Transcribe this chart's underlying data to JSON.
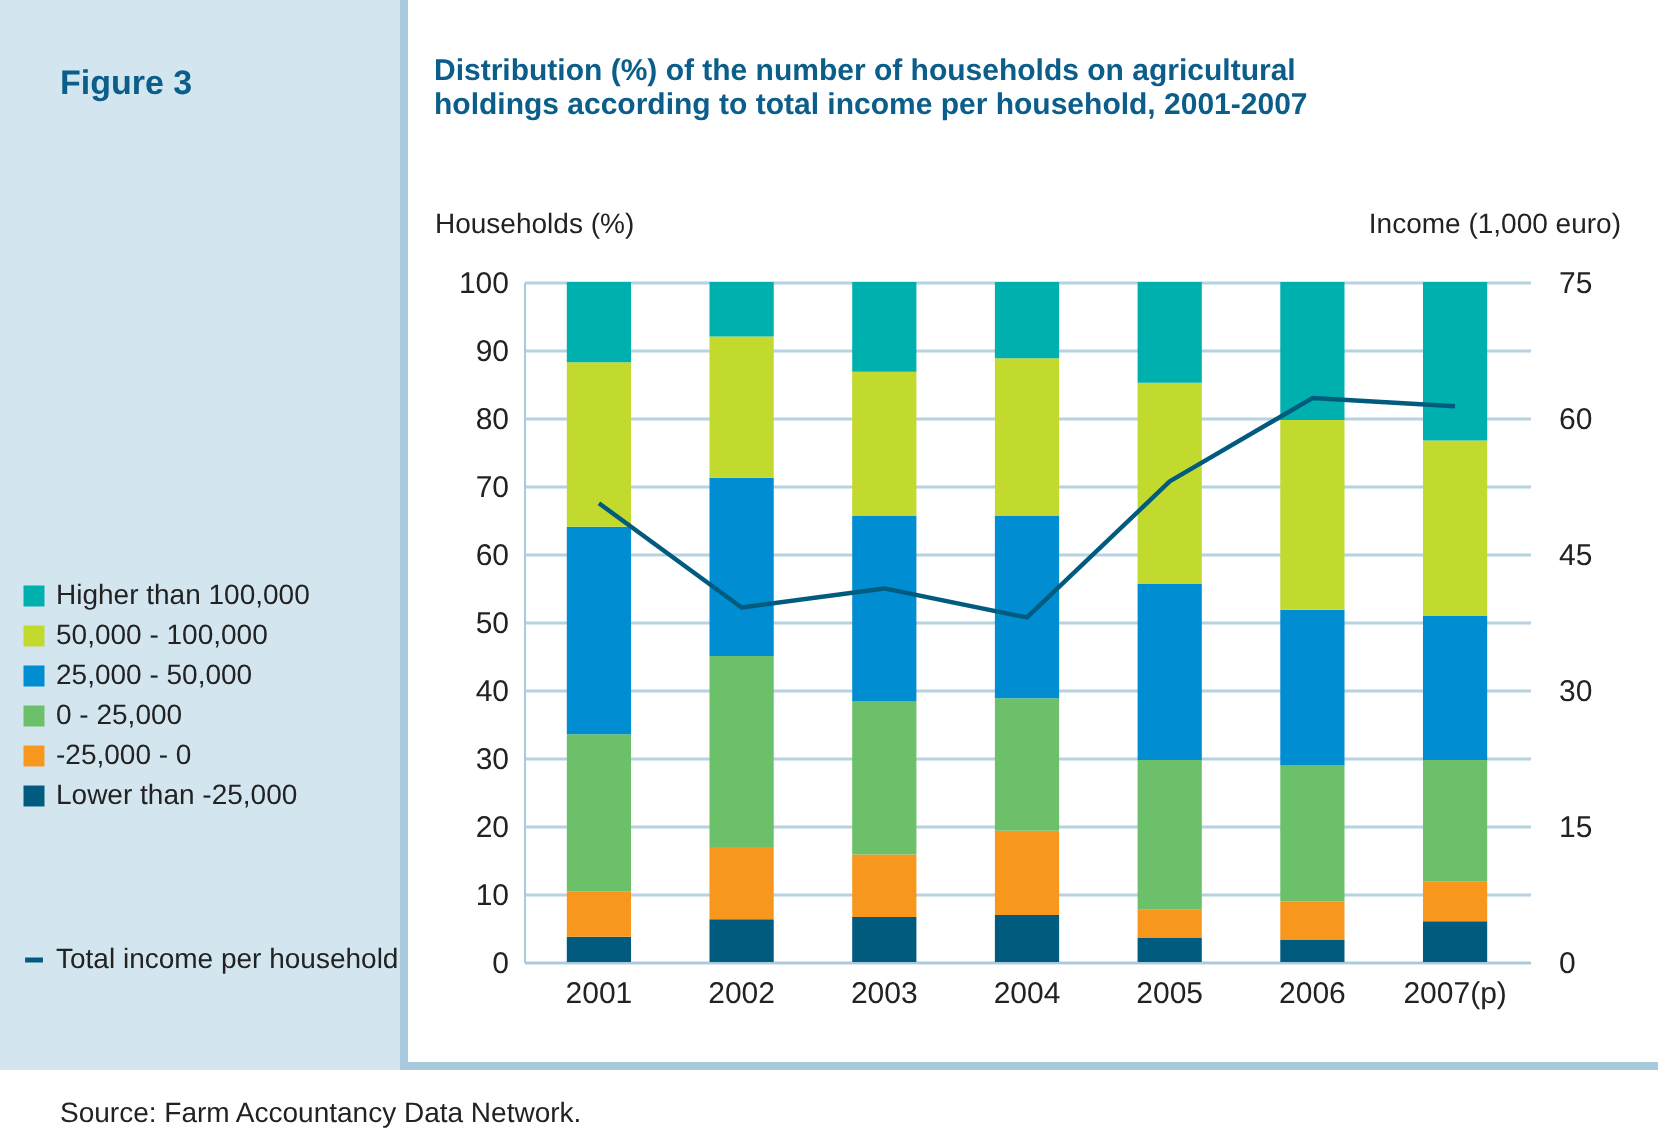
{
  "chart_data": {
    "type": "bar",
    "title": "Distribution (%) of the number of households on agricultural holdings according to total income per household, 2001-2007",
    "ylabel": "Households (%)",
    "y2label": "Income (1,000 euro)",
    "annotations": [
      "Figure 3",
      "Source: Farm Accountancy Data Network."
    ],
    "categories": [
      "2001",
      "2002",
      "2003",
      "2004",
      "2005",
      "2006",
      "2007(p)"
    ],
    "stacked": true,
    "series": [
      {
        "name": "Lower than -25,000",
        "color": "#005b7f",
        "values": [
          3.7,
          6.3,
          6.6,
          6.9,
          3.6,
          3.3,
          6.0
        ]
      },
      {
        "name": "-25,000 - 0",
        "color": "#f7971e",
        "values": [
          6.7,
          10.6,
          9.2,
          12.4,
          4.1,
          5.6,
          5.8
        ]
      },
      {
        "name": "0 - 25,000",
        "color": "#6cc06a",
        "values": [
          23.1,
          28.1,
          22.5,
          19.5,
          22.0,
          20.0,
          17.9
        ]
      },
      {
        "name": "25,000 - 50,000",
        "color": "#008dd2",
        "values": [
          30.5,
          26.2,
          27.3,
          26.8,
          25.9,
          22.9,
          21.2
        ]
      },
      {
        "name": "50,000 - 100,000",
        "color": "#c2d92e",
        "values": [
          24.2,
          20.8,
          21.2,
          23.2,
          29.6,
          27.9,
          25.8
        ]
      },
      {
        "name": "Higher than 100,000",
        "color": "#00b0ae",
        "values": [
          11.8,
          8.0,
          13.2,
          11.2,
          14.8,
          20.3,
          23.3
        ]
      },
      {
        "name": "Total income per household",
        "type": "line",
        "axis": "y2",
        "color": "#005b7f",
        "values": [
          50.6,
          39.1,
          41.2,
          38.0,
          53.0,
          62.2,
          61.3
        ]
      }
    ],
    "ylim": [
      0,
      100
    ],
    "yticks": [
      0,
      10,
      20,
      30,
      40,
      50,
      60,
      70,
      80,
      90,
      100
    ],
    "y2lim": [
      0,
      75
    ],
    "y2ticks": [
      0,
      15,
      30,
      45,
      60,
      75
    ],
    "grid": "y",
    "legend": "left"
  }
}
